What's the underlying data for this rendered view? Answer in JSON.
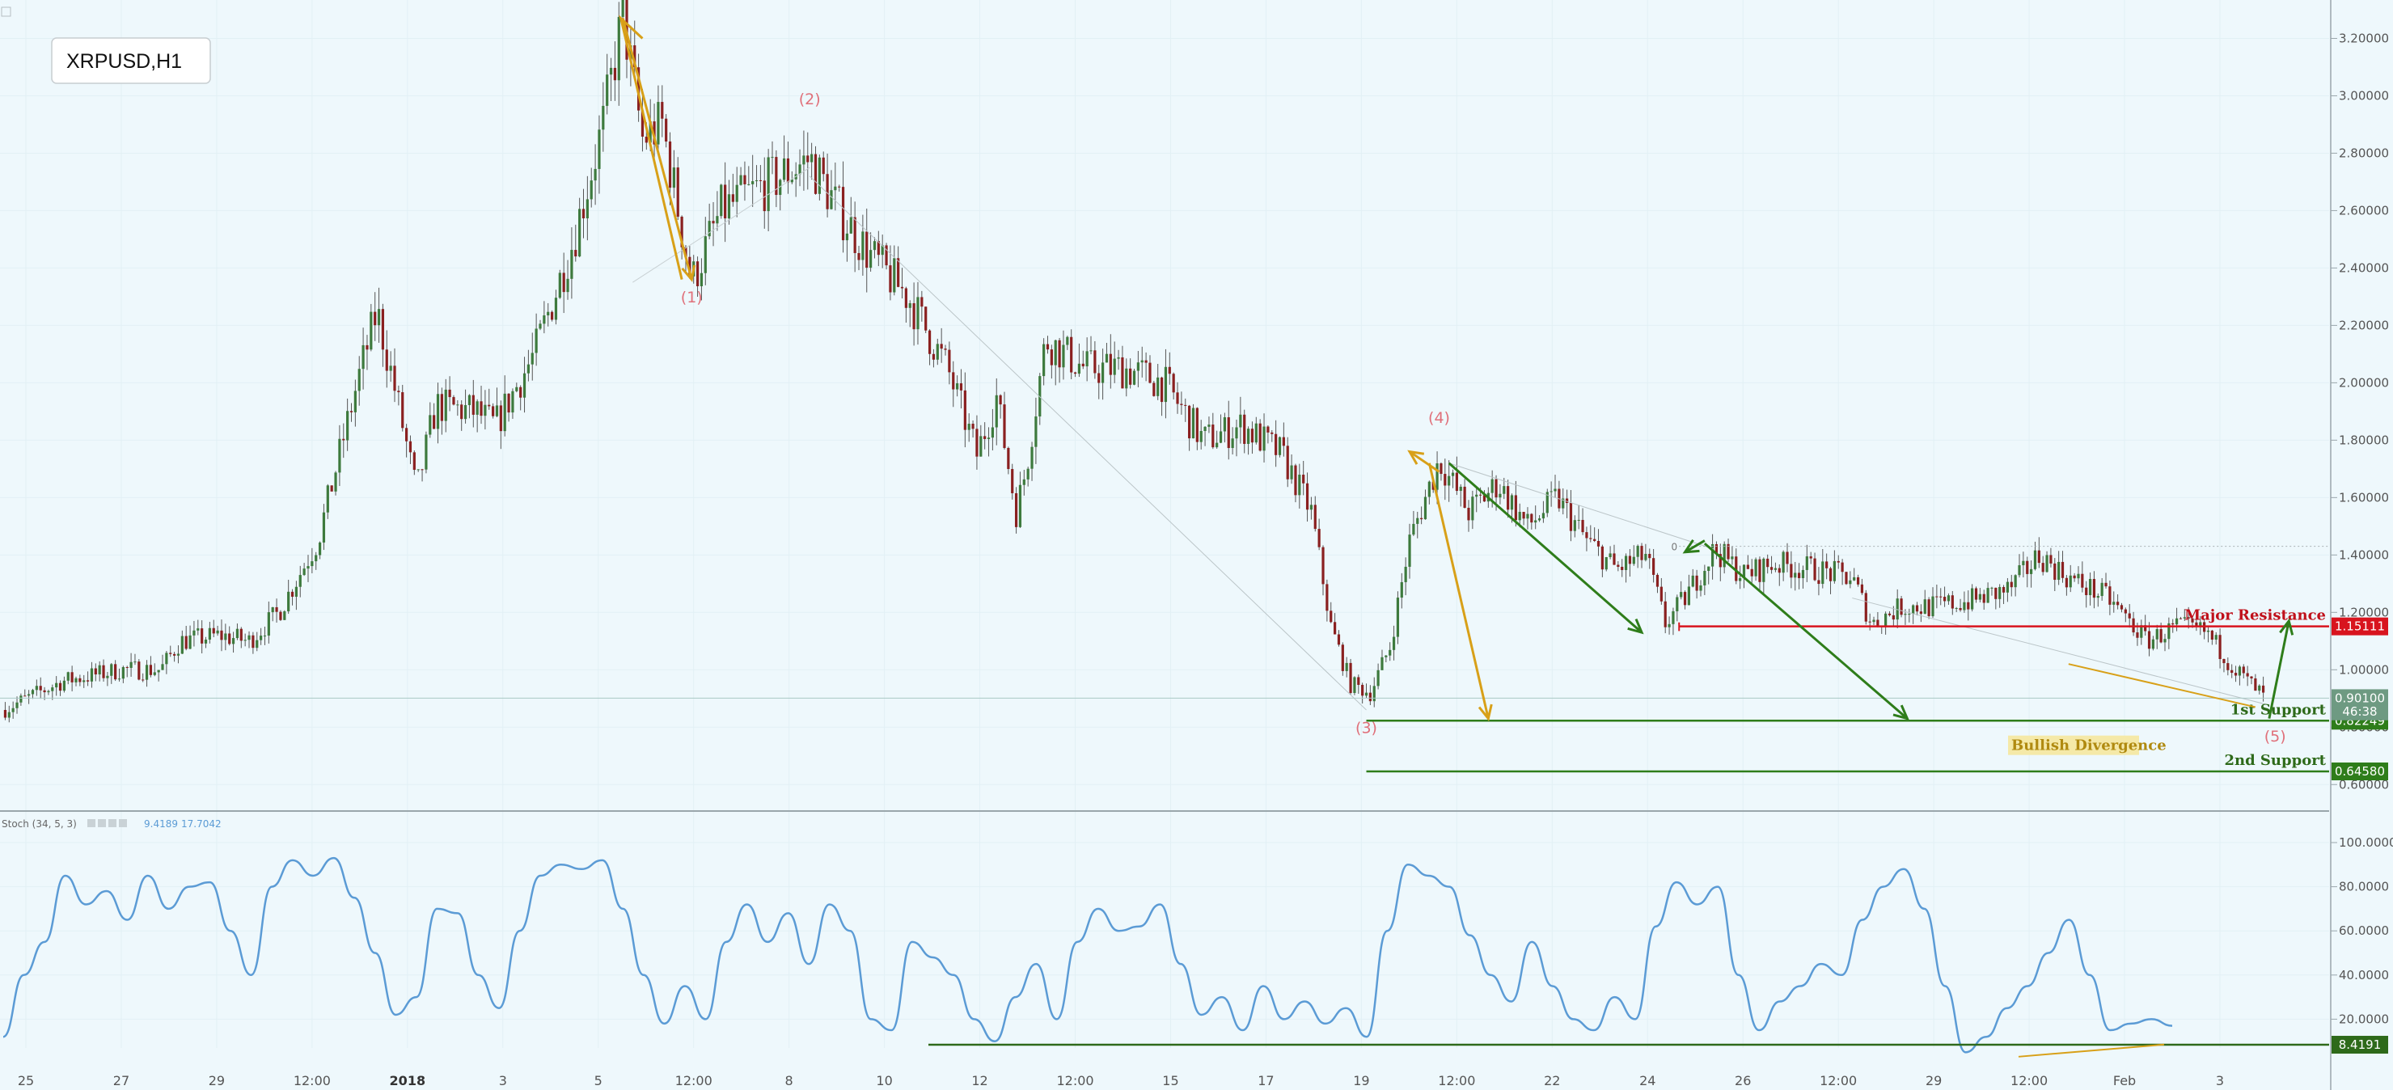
{
  "chart_data": {
    "type": "candlestick",
    "symbol_label": "XRPUSD,H1",
    "price_axis": {
      "range": [
        0.55,
        3.3
      ],
      "ticks": [
        "3.20000",
        "3.00000",
        "2.80000",
        "2.60000",
        "2.40000",
        "2.20000",
        "2.00000",
        "1.80000",
        "1.60000",
        "1.40000",
        "1.20000",
        "1.00000",
        "0.80000",
        "0.60000"
      ]
    },
    "time_axis": {
      "labels": [
        "25",
        "27",
        "29",
        "12:00",
        "2018",
        "3",
        "5",
        "12:00",
        "8",
        "10",
        "12",
        "12:00",
        "15",
        "17",
        "19",
        "12:00",
        "22",
        "24",
        "26",
        "12:00",
        "29",
        "12:00",
        "Feb",
        "3"
      ],
      "bold_labels": [
        "2018"
      ]
    },
    "price_path": [
      {
        "t": 0,
        "p": 0.86
      },
      {
        "t": 3,
        "p": 0.96
      },
      {
        "t": 6,
        "p": 1.0
      },
      {
        "t": 8,
        "p": 1.0
      },
      {
        "t": 9,
        "p": 1.1
      },
      {
        "t": 11,
        "p": 1.12
      },
      {
        "t": 12.5,
        "p": 1.1
      },
      {
        "t": 14,
        "p": 1.2
      },
      {
        "t": 16,
        "p": 1.45
      },
      {
        "t": 18,
        "p": 2.0
      },
      {
        "t": 19,
        "p": 2.25
      },
      {
        "t": 20,
        "p": 1.95
      },
      {
        "t": 21,
        "p": 1.62
      },
      {
        "t": 22,
        "p": 1.92
      },
      {
        "t": 24,
        "p": 1.9
      },
      {
        "t": 25,
        "p": 1.85
      },
      {
        "t": 27,
        "p": 2.1
      },
      {
        "t": 29,
        "p": 2.5
      },
      {
        "t": 30.5,
        "p": 2.9
      },
      {
        "t": 31.5,
        "p": 3.28
      },
      {
        "t": 32.5,
        "p": 2.85
      },
      {
        "t": 33.5,
        "p": 2.9
      },
      {
        "t": 35,
        "p": 2.35
      },
      {
        "t": 36.5,
        "p": 2.6
      },
      {
        "t": 39,
        "p": 2.7
      },
      {
        "t": 41,
        "p": 2.78
      },
      {
        "t": 42.5,
        "p": 2.6
      },
      {
        "t": 44,
        "p": 2.45
      },
      {
        "t": 46,
        "p": 2.3
      },
      {
        "t": 48,
        "p": 2.05
      },
      {
        "t": 49.5,
        "p": 1.75
      },
      {
        "t": 50.5,
        "p": 1.95
      },
      {
        "t": 51.5,
        "p": 1.55
      },
      {
        "t": 52,
        "p": 1.7
      },
      {
        "t": 53,
        "p": 2.15
      },
      {
        "t": 55,
        "p": 2.05
      },
      {
        "t": 57,
        "p": 2.05
      },
      {
        "t": 59,
        "p": 2.0
      },
      {
        "t": 61,
        "p": 1.8
      },
      {
        "t": 63,
        "p": 1.85
      },
      {
        "t": 65,
        "p": 1.75
      },
      {
        "t": 66.5,
        "p": 1.55
      },
      {
        "t": 67.5,
        "p": 1.15
      },
      {
        "t": 68.5,
        "p": 0.95
      },
      {
        "t": 69.5,
        "p": 0.92
      },
      {
        "t": 70.5,
        "p": 1.08
      },
      {
        "t": 71.5,
        "p": 1.45
      },
      {
        "t": 73,
        "p": 1.73
      },
      {
        "t": 74.5,
        "p": 1.55
      },
      {
        "t": 76,
        "p": 1.65
      },
      {
        "t": 77.5,
        "p": 1.5
      },
      {
        "t": 79,
        "p": 1.6
      },
      {
        "t": 80.5,
        "p": 1.45
      },
      {
        "t": 82,
        "p": 1.35
      },
      {
        "t": 83.5,
        "p": 1.4
      },
      {
        "t": 84.5,
        "p": 1.16
      },
      {
        "t": 85.5,
        "p": 1.25
      },
      {
        "t": 87,
        "p": 1.42
      },
      {
        "t": 88.5,
        "p": 1.33
      },
      {
        "t": 90,
        "p": 1.37
      },
      {
        "t": 92,
        "p": 1.35
      },
      {
        "t": 94,
        "p": 1.32
      },
      {
        "t": 95,
        "p": 1.16
      },
      {
        "t": 96.5,
        "p": 1.22
      },
      {
        "t": 98,
        "p": 1.22
      },
      {
        "t": 100,
        "p": 1.24
      },
      {
        "t": 102,
        "p": 1.28
      },
      {
        "t": 103.5,
        "p": 1.4
      },
      {
        "t": 105,
        "p": 1.32
      },
      {
        "t": 107,
        "p": 1.25
      },
      {
        "t": 109,
        "p": 1.1
      },
      {
        "t": 110.5,
        "p": 1.15
      },
      {
        "t": 112,
        "p": 1.13
      },
      {
        "t": 113.5,
        "p": 1.0
      },
      {
        "t": 115,
        "p": 0.9
      }
    ],
    "levels": [
      {
        "name": "Major Resistance",
        "price": 1.15111,
        "label": "1.15111",
        "color": "#d8141e"
      },
      {
        "name": "1st Support",
        "price": 0.82249,
        "label": "0.82249",
        "color": "#2e7d1a"
      },
      {
        "name": "2nd Support",
        "price": 0.6458,
        "label": "0.64580",
        "color": "#2e7d1a"
      }
    ],
    "price_badges": [
      {
        "label": "0.90100",
        "price": 0.901,
        "color": "#6e9a82"
      },
      {
        "label": "46:38",
        "price": 0.855,
        "color": "#6e9a82"
      }
    ],
    "wave_labels": [
      {
        "text": "(1)",
        "t": 35,
        "p": 2.28
      },
      {
        "text": "(2)",
        "t": 41,
        "p": 2.97
      },
      {
        "text": "(3)",
        "t": 69.3,
        "p": 0.78
      },
      {
        "text": "(4)",
        "t": 73,
        "p": 1.86
      },
      {
        "text": "(5)",
        "t": 115.5,
        "p": 0.75
      }
    ],
    "annotations": [
      {
        "text": "Major Resistance",
        "color": "#c0101a"
      },
      {
        "text": "1st Support",
        "color": "#2e6a1a"
      },
      {
        "text": "2nd Support",
        "color": "#2e6a1a"
      },
      {
        "text": "Bullish Divergence",
        "color": "#b08a10"
      }
    ],
    "fib_zero_label": "0",
    "indicator": {
      "name": "Stoch (34, 5, 3)",
      "legend_values": [
        "9.4189",
        "17.7042"
      ],
      "range": [
        0,
        100
      ],
      "ticks": [
        "100.0000",
        "80.0000",
        "60.0000",
        "40.0000",
        "20.0000"
      ],
      "level": {
        "value": 8.4191,
        "label": "8.4191",
        "color": "#2e6a1a"
      },
      "path": [
        {
          "t": 0,
          "v": 12
        },
        {
          "t": 1,
          "v": 40
        },
        {
          "t": 2,
          "v": 55
        },
        {
          "t": 3,
          "v": 85
        },
        {
          "t": 4,
          "v": 72
        },
        {
          "t": 5,
          "v": 78
        },
        {
          "t": 6,
          "v": 65
        },
        {
          "t": 7,
          "v": 85
        },
        {
          "t": 8,
          "v": 70
        },
        {
          "t": 9,
          "v": 80
        },
        {
          "t": 10,
          "v": 82
        },
        {
          "t": 11,
          "v": 60
        },
        {
          "t": 12,
          "v": 40
        },
        {
          "t": 13,
          "v": 80
        },
        {
          "t": 14,
          "v": 92
        },
        {
          "t": 15,
          "v": 85
        },
        {
          "t": 16,
          "v": 93
        },
        {
          "t": 17,
          "v": 75
        },
        {
          "t": 18,
          "v": 50
        },
        {
          "t": 19,
          "v": 22
        },
        {
          "t": 20,
          "v": 30
        },
        {
          "t": 21,
          "v": 70
        },
        {
          "t": 22,
          "v": 68
        },
        {
          "t": 23,
          "v": 40
        },
        {
          "t": 24,
          "v": 25
        },
        {
          "t": 25,
          "v": 60
        },
        {
          "t": 26,
          "v": 85
        },
        {
          "t": 27,
          "v": 90
        },
        {
          "t": 28,
          "v": 88
        },
        {
          "t": 29,
          "v": 92
        },
        {
          "t": 30,
          "v": 70
        },
        {
          "t": 31,
          "v": 40
        },
        {
          "t": 32,
          "v": 18
        },
        {
          "t": 33,
          "v": 35
        },
        {
          "t": 34,
          "v": 20
        },
        {
          "t": 35,
          "v": 55
        },
        {
          "t": 36,
          "v": 72
        },
        {
          "t": 37,
          "v": 55
        },
        {
          "t": 38,
          "v": 68
        },
        {
          "t": 39,
          "v": 45
        },
        {
          "t": 40,
          "v": 72
        },
        {
          "t": 41,
          "v": 60
        },
        {
          "t": 42,
          "v": 20
        },
        {
          "t": 43,
          "v": 15
        },
        {
          "t": 44,
          "v": 55
        },
        {
          "t": 45,
          "v": 48
        },
        {
          "t": 46,
          "v": 40
        },
        {
          "t": 47,
          "v": 20
        },
        {
          "t": 48,
          "v": 10
        },
        {
          "t": 49,
          "v": 30
        },
        {
          "t": 50,
          "v": 45
        },
        {
          "t": 51,
          "v": 20
        },
        {
          "t": 52,
          "v": 55
        },
        {
          "t": 53,
          "v": 70
        },
        {
          "t": 54,
          "v": 60
        },
        {
          "t": 55,
          "v": 62
        },
        {
          "t": 56,
          "v": 72
        },
        {
          "t": 57,
          "v": 45
        },
        {
          "t": 58,
          "v": 22
        },
        {
          "t": 59,
          "v": 30
        },
        {
          "t": 60,
          "v": 15
        },
        {
          "t": 61,
          "v": 35
        },
        {
          "t": 62,
          "v": 20
        },
        {
          "t": 63,
          "v": 28
        },
        {
          "t": 64,
          "v": 18
        },
        {
          "t": 65,
          "v": 25
        },
        {
          "t": 66,
          "v": 12
        },
        {
          "t": 67,
          "v": 60
        },
        {
          "t": 68,
          "v": 90
        },
        {
          "t": 69,
          "v": 85
        },
        {
          "t": 70,
          "v": 80
        },
        {
          "t": 71,
          "v": 58
        },
        {
          "t": 72,
          "v": 40
        },
        {
          "t": 73,
          "v": 28
        },
        {
          "t": 74,
          "v": 55
        },
        {
          "t": 75,
          "v": 35
        },
        {
          "t": 76,
          "v": 20
        },
        {
          "t": 77,
          "v": 15
        },
        {
          "t": 78,
          "v": 30
        },
        {
          "t": 79,
          "v": 20
        },
        {
          "t": 80,
          "v": 62
        },
        {
          "t": 81,
          "v": 82
        },
        {
          "t": 82,
          "v": 72
        },
        {
          "t": 83,
          "v": 80
        },
        {
          "t": 84,
          "v": 40
        },
        {
          "t": 85,
          "v": 15
        },
        {
          "t": 86,
          "v": 28
        },
        {
          "t": 87,
          "v": 35
        },
        {
          "t": 88,
          "v": 45
        },
        {
          "t": 89,
          "v": 40
        },
        {
          "t": 90,
          "v": 65
        },
        {
          "t": 91,
          "v": 80
        },
        {
          "t": 92,
          "v": 88
        },
        {
          "t": 93,
          "v": 70
        },
        {
          "t": 94,
          "v": 35
        },
        {
          "t": 95,
          "v": 5
        },
        {
          "t": 96,
          "v": 12
        },
        {
          "t": 97,
          "v": 25
        },
        {
          "t": 98,
          "v": 35
        },
        {
          "t": 99,
          "v": 50
        },
        {
          "t": 100,
          "v": 65
        },
        {
          "t": 101,
          "v": 40
        },
        {
          "t": 102,
          "v": 15
        },
        {
          "t": 103,
          "v": 18
        },
        {
          "t": 104,
          "v": 20
        },
        {
          "t": 105,
          "v": 17
        }
      ]
    },
    "colors": {
      "background": "#eef8fc",
      "up_candle": "#3d7a3d",
      "down_candle": "#8a2020",
      "indicator_line": "#5b9bd5",
      "arrow_orange": "#d8a018",
      "arrow_green": "#2e7d1a"
    }
  }
}
